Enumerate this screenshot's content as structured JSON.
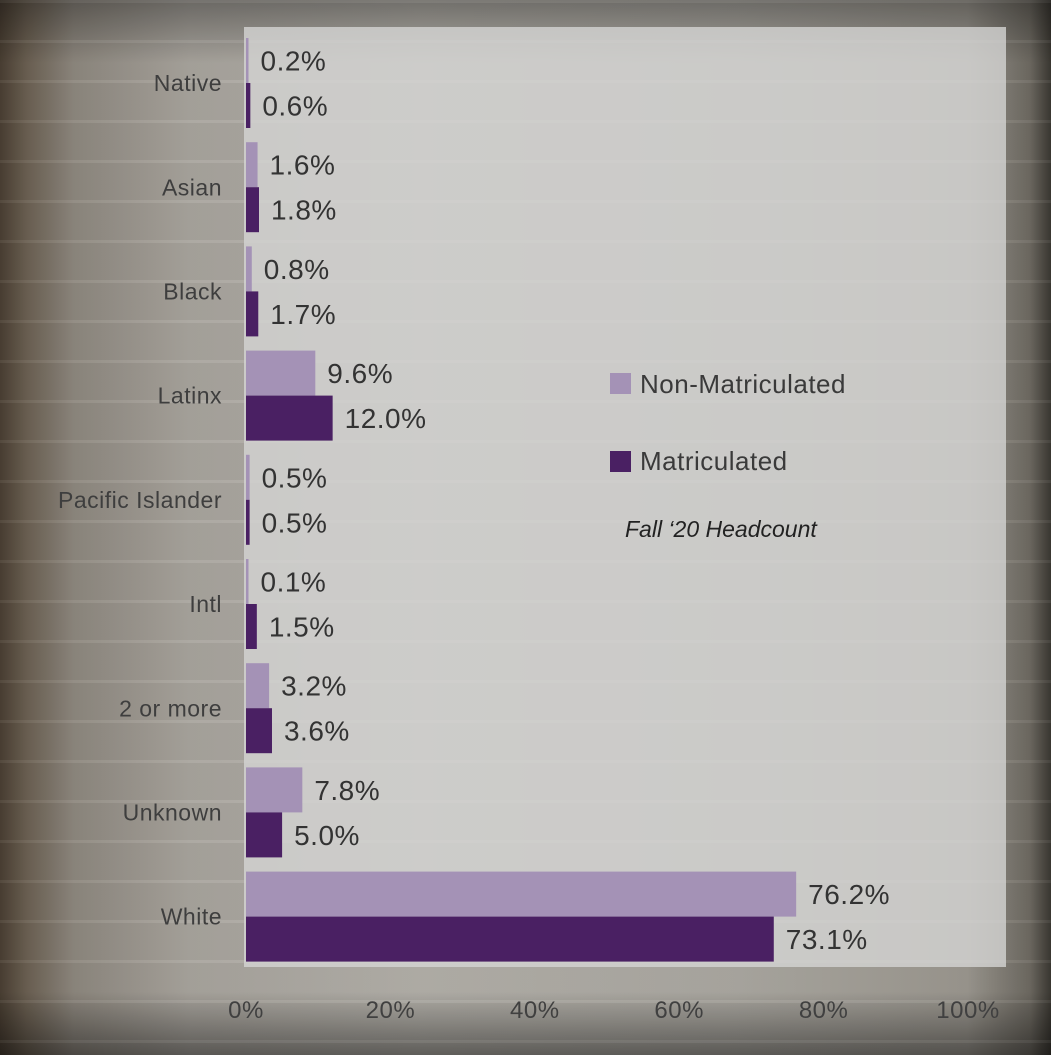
{
  "chart_data": {
    "type": "bar",
    "orientation": "horizontal",
    "categories": [
      "Native",
      "Asian",
      "Black",
      "Latinx",
      "Pacific Islander",
      "Intl",
      "2 or more",
      "Unknown",
      "White"
    ],
    "series": [
      {
        "name": "Non-Matriculated",
        "color": "#a492b6",
        "values": [
          0.2,
          1.6,
          0.8,
          9.6,
          0.5,
          0.1,
          3.2,
          7.8,
          76.2
        ],
        "labels": [
          "0.2%",
          "1.6%",
          "0.8%",
          "9.6%",
          "0.5%",
          "0.1%",
          "3.2%",
          "7.8%",
          "76.2%"
        ]
      },
      {
        "name": "Matriculated",
        "color": "#4a2063",
        "values": [
          0.6,
          1.8,
          1.7,
          12.0,
          0.5,
          1.5,
          3.6,
          5.0,
          73.1
        ],
        "labels": [
          "0.6%",
          "1.8%",
          "1.7%",
          "12.0%",
          "0.5%",
          "1.5%",
          "3.6%",
          "5.0%",
          "73.1%"
        ]
      }
    ],
    "xlim": [
      0,
      100
    ],
    "x_ticks": [
      "0%",
      "20%",
      "40%",
      "60%",
      "80%",
      "100%"
    ],
    "grid": false,
    "legend": "right",
    "annotation": "Fall ‘20 Headcount"
  }
}
